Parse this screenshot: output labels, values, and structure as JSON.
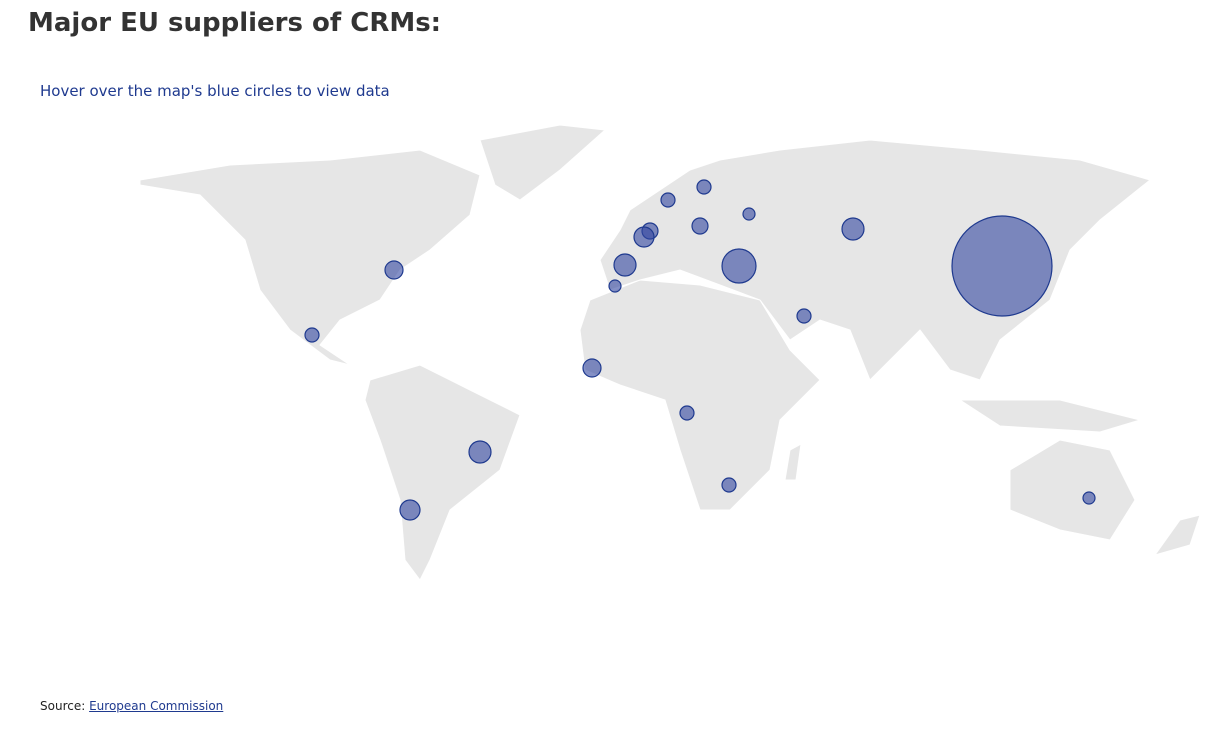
{
  "header": {
    "title": "Major EU suppliers of CRMs:",
    "subtitle": "Hover over the map's blue circles to view data"
  },
  "footer": {
    "source_prefix": "Source:",
    "source_link": "European Commission"
  }
}
